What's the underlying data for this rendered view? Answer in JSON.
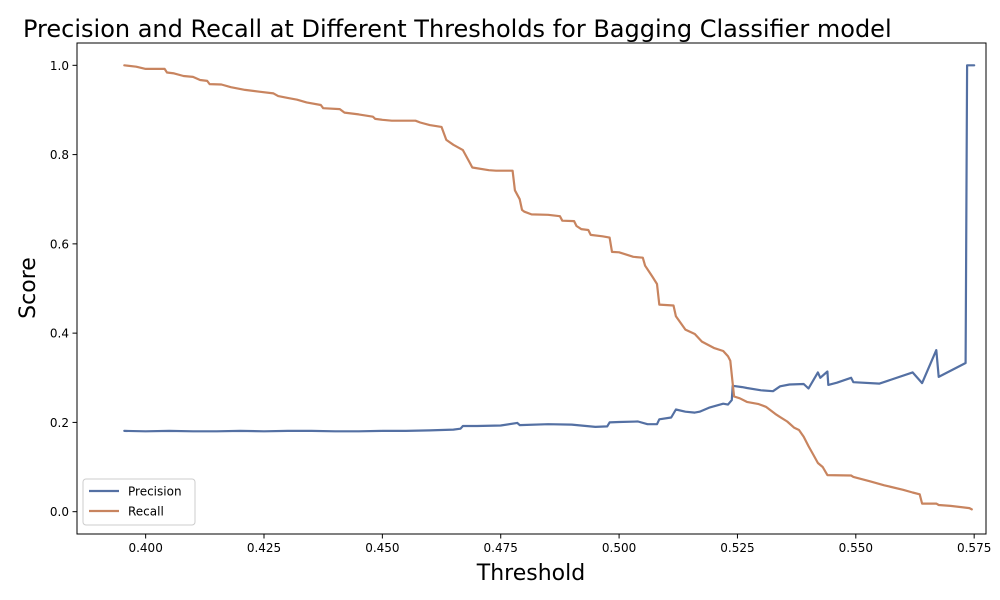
{
  "chart_data": {
    "type": "line",
    "title": "Precision and Recall at Different Thresholds for Bagging Classifier  model",
    "xlabel": "Threshold",
    "ylabel": "Score",
    "xlim": [
      0.3855,
      0.5775
    ],
    "ylim": [
      -0.05,
      1.05
    ],
    "xticks": [
      0.4,
      0.425,
      0.45,
      0.475,
      0.5,
      0.525,
      0.55,
      0.575
    ],
    "xtick_labels": [
      "0.400",
      "0.425",
      "0.450",
      "0.475",
      "0.500",
      "0.525",
      "0.550",
      "0.575"
    ],
    "yticks": [
      0.0,
      0.2,
      0.4,
      0.6,
      0.8,
      1.0
    ],
    "ytick_labels": [
      "0.0",
      "0.2",
      "0.4",
      "0.6",
      "0.8",
      "1.0"
    ],
    "grid": false,
    "legend_position": "lower-left",
    "series": [
      {
        "name": "Precision",
        "color": "#5470a3",
        "points": [
          [
            0.3955,
            0.181
          ],
          [
            0.4,
            0.18
          ],
          [
            0.405,
            0.181
          ],
          [
            0.41,
            0.18
          ],
          [
            0.415,
            0.18
          ],
          [
            0.42,
            0.181
          ],
          [
            0.425,
            0.18
          ],
          [
            0.43,
            0.181
          ],
          [
            0.435,
            0.181
          ],
          [
            0.44,
            0.18
          ],
          [
            0.445,
            0.18
          ],
          [
            0.45,
            0.181
          ],
          [
            0.455,
            0.181
          ],
          [
            0.46,
            0.182
          ],
          [
            0.465,
            0.184
          ],
          [
            0.4665,
            0.186
          ],
          [
            0.467,
            0.192
          ],
          [
            0.47,
            0.192
          ],
          [
            0.475,
            0.193
          ],
          [
            0.4785,
            0.199
          ],
          [
            0.479,
            0.194
          ],
          [
            0.485,
            0.196
          ],
          [
            0.49,
            0.195
          ],
          [
            0.495,
            0.19
          ],
          [
            0.4975,
            0.191
          ],
          [
            0.498,
            0.2
          ],
          [
            0.5,
            0.201
          ],
          [
            0.504,
            0.202
          ],
          [
            0.506,
            0.196
          ],
          [
            0.508,
            0.196
          ],
          [
            0.5085,
            0.207
          ],
          [
            0.511,
            0.211
          ],
          [
            0.512,
            0.229
          ],
          [
            0.514,
            0.224
          ],
          [
            0.516,
            0.222
          ],
          [
            0.517,
            0.224
          ],
          [
            0.519,
            0.233
          ],
          [
            0.522,
            0.242
          ],
          [
            0.523,
            0.24
          ],
          [
            0.5238,
            0.25
          ],
          [
            0.524,
            0.282
          ],
          [
            0.526,
            0.279
          ],
          [
            0.527,
            0.277
          ],
          [
            0.53,
            0.272
          ],
          [
            0.5325,
            0.27
          ],
          [
            0.534,
            0.281
          ],
          [
            0.536,
            0.285
          ],
          [
            0.539,
            0.286
          ],
          [
            0.54,
            0.276
          ],
          [
            0.542,
            0.312
          ],
          [
            0.5425,
            0.3
          ],
          [
            0.544,
            0.314
          ],
          [
            0.5442,
            0.284
          ],
          [
            0.546,
            0.289
          ],
          [
            0.549,
            0.3
          ],
          [
            0.5495,
            0.29
          ],
          [
            0.555,
            0.287
          ],
          [
            0.562,
            0.312
          ],
          [
            0.564,
            0.288
          ],
          [
            0.567,
            0.362
          ],
          [
            0.5675,
            0.302
          ],
          [
            0.5732,
            0.333
          ],
          [
            0.5735,
            1.0
          ],
          [
            0.575,
            1.0
          ]
        ]
      },
      {
        "name": "Recall",
        "color": "#c8845f",
        "points": [
          [
            0.3955,
            1.0
          ],
          [
            0.398,
            0.997
          ],
          [
            0.4,
            0.992
          ],
          [
            0.404,
            0.992
          ],
          [
            0.4045,
            0.984
          ],
          [
            0.406,
            0.982
          ],
          [
            0.408,
            0.976
          ],
          [
            0.41,
            0.974
          ],
          [
            0.4115,
            0.967
          ],
          [
            0.413,
            0.965
          ],
          [
            0.4135,
            0.958
          ],
          [
            0.416,
            0.957
          ],
          [
            0.418,
            0.951
          ],
          [
            0.421,
            0.945
          ],
          [
            0.424,
            0.941
          ],
          [
            0.427,
            0.937
          ],
          [
            0.428,
            0.931
          ],
          [
            0.43,
            0.927
          ],
          [
            0.432,
            0.923
          ],
          [
            0.434,
            0.917
          ],
          [
            0.437,
            0.911
          ],
          [
            0.4375,
            0.904
          ],
          [
            0.441,
            0.902
          ],
          [
            0.442,
            0.894
          ],
          [
            0.445,
            0.89
          ],
          [
            0.448,
            0.885
          ],
          [
            0.4485,
            0.88
          ],
          [
            0.45,
            0.878
          ],
          [
            0.452,
            0.876
          ],
          [
            0.456,
            0.876
          ],
          [
            0.457,
            0.876
          ],
          [
            0.458,
            0.872
          ],
          [
            0.46,
            0.866
          ],
          [
            0.4625,
            0.862
          ],
          [
            0.4635,
            0.833
          ],
          [
            0.465,
            0.822
          ],
          [
            0.467,
            0.81
          ],
          [
            0.4685,
            0.781
          ],
          [
            0.469,
            0.771
          ],
          [
            0.4725,
            0.765
          ],
          [
            0.474,
            0.764
          ],
          [
            0.4775,
            0.764
          ],
          [
            0.478,
            0.72
          ],
          [
            0.479,
            0.7
          ],
          [
            0.4795,
            0.676
          ],
          [
            0.48,
            0.672
          ],
          [
            0.4815,
            0.666
          ],
          [
            0.485,
            0.665
          ],
          [
            0.4875,
            0.662
          ],
          [
            0.488,
            0.652
          ],
          [
            0.4905,
            0.651
          ],
          [
            0.491,
            0.64
          ],
          [
            0.492,
            0.633
          ],
          [
            0.4935,
            0.631
          ],
          [
            0.494,
            0.62
          ],
          [
            0.4965,
            0.617
          ],
          [
            0.498,
            0.614
          ],
          [
            0.4985,
            0.582
          ],
          [
            0.5,
            0.581
          ],
          [
            0.503,
            0.571
          ],
          [
            0.505,
            0.569
          ],
          [
            0.5055,
            0.551
          ],
          [
            0.5065,
            0.535
          ],
          [
            0.507,
            0.527
          ],
          [
            0.508,
            0.51
          ],
          [
            0.5085,
            0.464
          ],
          [
            0.5115,
            0.462
          ],
          [
            0.512,
            0.438
          ],
          [
            0.514,
            0.408
          ],
          [
            0.516,
            0.398
          ],
          [
            0.5175,
            0.381
          ],
          [
            0.52,
            0.367
          ],
          [
            0.522,
            0.36
          ],
          [
            0.523,
            0.348
          ],
          [
            0.5235,
            0.338
          ],
          [
            0.524,
            0.287
          ],
          [
            0.5243,
            0.258
          ],
          [
            0.5255,
            0.254
          ],
          [
            0.527,
            0.246
          ],
          [
            0.5295,
            0.241
          ],
          [
            0.531,
            0.235
          ],
          [
            0.533,
            0.219
          ],
          [
            0.534,
            0.212
          ],
          [
            0.5355,
            0.202
          ],
          [
            0.537,
            0.188
          ],
          [
            0.538,
            0.183
          ],
          [
            0.539,
            0.168
          ],
          [
            0.54,
            0.147
          ],
          [
            0.541,
            0.128
          ],
          [
            0.542,
            0.109
          ],
          [
            0.543,
            0.1
          ],
          [
            0.544,
            0.082
          ],
          [
            0.549,
            0.081
          ],
          [
            0.5495,
            0.078
          ],
          [
            0.553,
            0.068
          ],
          [
            0.556,
            0.059
          ],
          [
            0.56,
            0.049
          ],
          [
            0.562,
            0.043
          ],
          [
            0.5635,
            0.039
          ],
          [
            0.564,
            0.018
          ],
          [
            0.567,
            0.018
          ],
          [
            0.5675,
            0.015
          ],
          [
            0.57,
            0.013
          ],
          [
            0.574,
            0.008
          ],
          [
            0.5745,
            0.005
          ]
        ]
      }
    ]
  }
}
